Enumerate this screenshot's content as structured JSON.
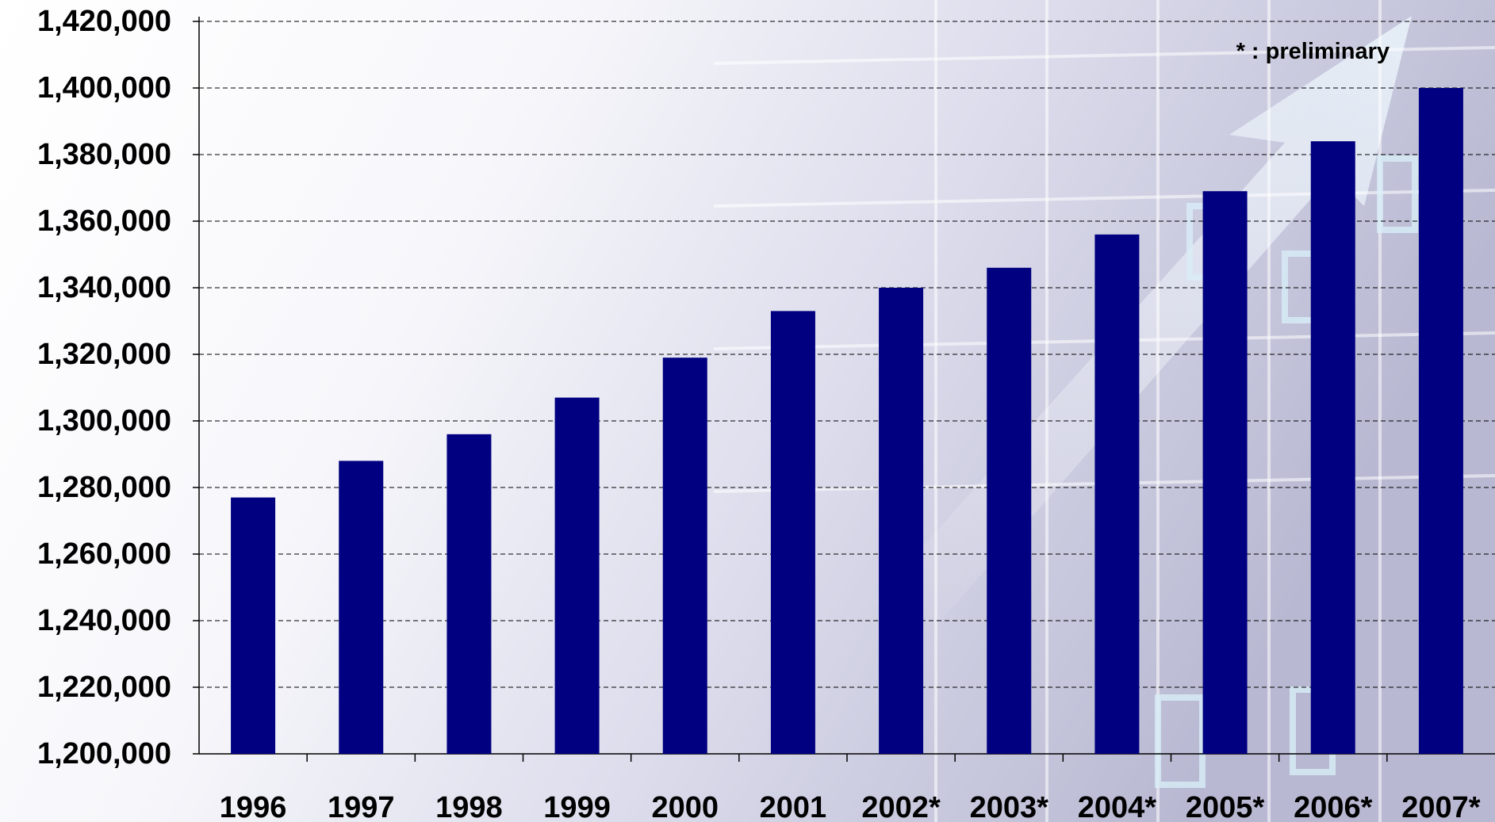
{
  "chart_data": {
    "type": "bar",
    "categories": [
      "1996",
      "1997",
      "1998",
      "1999",
      "2000",
      "2001",
      "2002*",
      "2003*",
      "2004*",
      "2005*",
      "2006*",
      "2007*"
    ],
    "values": [
      1277000,
      1288000,
      1296000,
      1307000,
      1319000,
      1333000,
      1340000,
      1346000,
      1356000,
      1369000,
      1384000,
      1400000
    ],
    "yticks": [
      "1,200,000",
      "1,220,000",
      "1,240,000",
      "1,260,000",
      "1,280,000",
      "1,300,000",
      "1,320,000",
      "1,340,000",
      "1,360,000",
      "1,380,000",
      "1,400,000",
      "1,420,000"
    ],
    "ylim": [
      1200000,
      1420000
    ],
    "ystep": 20000,
    "grid": true,
    "annotation": "* : preliminary",
    "bar_color": "#000080"
  }
}
